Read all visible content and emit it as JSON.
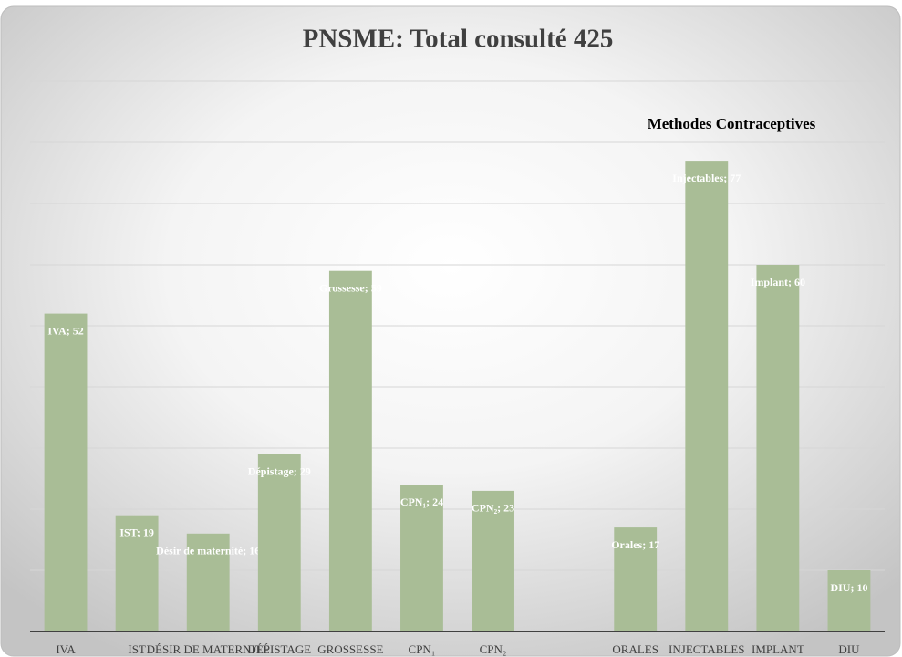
{
  "chart_data": {
    "type": "bar",
    "title": "PNSME: Total consulté 425",
    "annotation": "Methodes Contraceptives",
    "categories": [
      "IVA",
      "IST",
      "DÉSIR DE MATERNITÉ",
      "DÉPISTAGE",
      "GROSSESSE",
      "CPN₁",
      "CPN₂",
      null,
      "ORALES",
      "INJECTABLES",
      "IMPLANT",
      "DIU"
    ],
    "values": [
      52,
      19,
      16,
      29,
      59,
      24,
      23,
      null,
      17,
      77,
      60,
      10
    ],
    "value_labels": [
      "IVA; 52",
      "IST; 19",
      "Désir de maternité; 16",
      "Dépistage; 29",
      "Grossesse; 59",
      "CPN₁; 24",
      "CPN₂; 23",
      null,
      "Orales; 17",
      "Injectables; 77",
      "Implant; 60",
      "DIU; 10"
    ],
    "color": "#a9bd96",
    "ylim": [
      0,
      90
    ],
    "yticks": [
      0,
      10,
      20,
      30,
      40,
      50,
      60,
      70,
      80,
      90
    ],
    "grid": true
  }
}
